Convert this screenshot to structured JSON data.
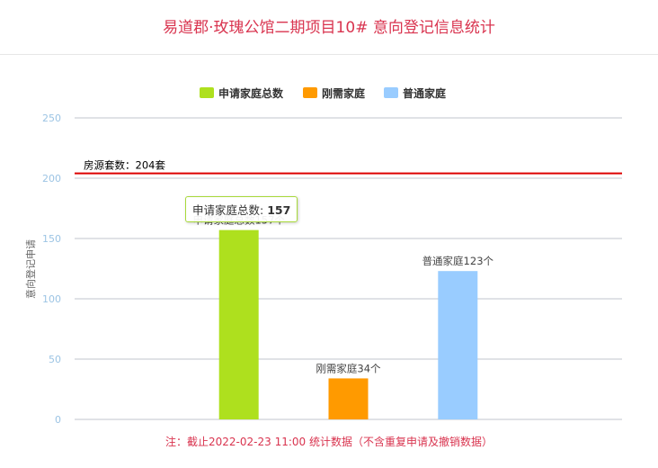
{
  "title": "易道郡·玫瑰公馆二期项目10# 意向登记信息统计",
  "note": "注：截止2022-02-23 11:00 统计数据（不含重复申请及撤销数据）",
  "tooltip": {
    "label": "申请家庭总数: ",
    "value": "157"
  },
  "chart_data": {
    "type": "bar",
    "ylabel": "意向登记申请",
    "ylim": [
      0,
      250
    ],
    "yticks": [
      0,
      50,
      100,
      150,
      200,
      250
    ],
    "grid": true,
    "legend": "top-center",
    "series": [
      {
        "name": "申请家庭总数",
        "value": 157,
        "color": "#aee01e",
        "label": "申请家庭总数157个"
      },
      {
        "name": "刚需家庭",
        "value": 34,
        "color": "#ff9a00",
        "label": "刚需家庭34个"
      },
      {
        "name": "普通家庭",
        "value": 123,
        "color": "#99ccff",
        "label": "普通家庭123个"
      }
    ],
    "plot_line": {
      "value": 204,
      "label": "房源套数：204套",
      "color": "#dd0000"
    }
  }
}
